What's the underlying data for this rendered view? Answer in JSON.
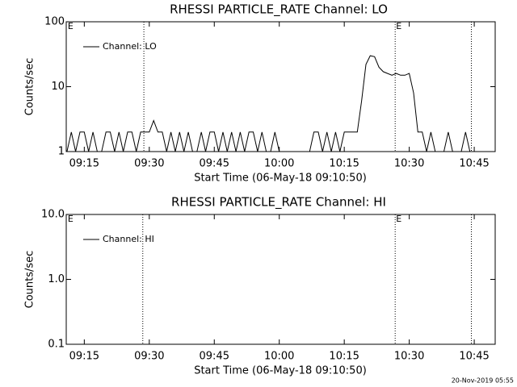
{
  "chart_data": [
    {
      "type": "line",
      "title": "RHESSI PARTICLE_RATE Channel: LO",
      "xlabel": "Start Time (06-May-18 09:10:50)",
      "ylabel": "Counts/sec",
      "log_y": true,
      "xlim": [
        "09:10:50",
        "10:49:50"
      ],
      "ylim": [
        1,
        100
      ],
      "yticks": [
        1,
        10,
        100
      ],
      "xticks": [
        "09:15",
        "09:30",
        "09:45",
        "10:00",
        "10:15",
        "10:30",
        "10:45"
      ],
      "event_lines": [
        "09:28:45",
        "10:26:45",
        "10:44:20"
      ],
      "event_labels": [
        {
          "time": "09:11:00",
          "label": "E"
        },
        {
          "time": "10:26:45",
          "label": "E"
        }
      ],
      "x": [
        "09:11",
        "09:12",
        "09:13",
        "09:14",
        "09:15",
        "09:16",
        "09:17",
        "09:18",
        "09:19",
        "09:20",
        "09:21",
        "09:22",
        "09:23",
        "09:24",
        "09:25",
        "09:26",
        "09:27",
        "09:28",
        "09:29",
        "09:30",
        "09:31",
        "09:32",
        "09:33",
        "09:34",
        "09:35",
        "09:36",
        "09:37",
        "09:38",
        "09:39",
        "09:40",
        "09:41",
        "09:42",
        "09:43",
        "09:44",
        "09:45",
        "09:46",
        "09:47",
        "09:48",
        "09:49",
        "09:50",
        "09:51",
        "09:52",
        "09:53",
        "09:54",
        "09:55",
        "09:56",
        "09:57",
        "09:58",
        "09:59",
        "10:00",
        "10:01",
        "10:02",
        "10:03",
        "10:04",
        "10:05",
        "10:06",
        "10:07",
        "10:08",
        "10:09",
        "10:10",
        "10:11",
        "10:12",
        "10:13",
        "10:14",
        "10:15",
        "10:16",
        "10:17",
        "10:18",
        "10:19",
        "10:20",
        "10:21",
        "10:22",
        "10:23",
        "10:24",
        "10:25",
        "10:26",
        "10:27",
        "10:28",
        "10:29",
        "10:30",
        "10:31",
        "10:32",
        "10:33",
        "10:34",
        "10:35",
        "10:36",
        "10:37",
        "10:38",
        "10:39",
        "10:40",
        "10:41",
        "10:42",
        "10:43",
        "10:44",
        "10:45",
        "10:46",
        "10:47",
        "10:48",
        "10:49"
      ],
      "series": [
        {
          "name": "Channel: LO",
          "color": "#000000",
          "values": [
            1,
            2,
            1,
            2,
            2,
            1,
            2,
            1,
            1,
            2,
            2,
            1,
            2,
            1,
            2,
            2,
            1,
            2,
            2,
            2,
            3,
            2,
            2,
            1,
            2,
            1,
            2,
            1,
            2,
            1,
            1,
            2,
            1,
            2,
            2,
            1,
            2,
            1,
            2,
            1,
            2,
            1,
            2,
            2,
            1,
            2,
            1,
            1,
            2,
            1,
            1,
            1,
            1,
            1,
            1,
            1,
            1,
            2,
            2,
            1,
            2,
            1,
            2,
            1,
            2,
            2,
            2,
            2,
            6,
            22,
            30,
            29,
            20,
            17,
            16,
            15,
            16,
            15,
            15,
            16,
            8,
            2,
            2,
            1,
            2,
            1,
            1,
            1,
            2,
            1,
            1,
            1,
            2,
            1,
            1,
            1,
            1,
            1,
            1
          ]
        }
      ]
    },
    {
      "type": "line",
      "title": "RHESSI PARTICLE_RATE Channel: HI",
      "xlabel": "Start Time (06-May-18 09:10:50)",
      "ylabel": "Counts/sec",
      "log_y": true,
      "xlim": [
        "09:10:50",
        "10:49:50"
      ],
      "ylim": [
        0.1,
        10
      ],
      "yticks": [
        0.1,
        {
          "value": 1,
          "label": "1.0"
        },
        {
          "value": 10,
          "label": "10.0"
        }
      ],
      "xticks": [
        "09:15",
        "09:30",
        "09:45",
        "10:00",
        "10:15",
        "10:30",
        "10:45"
      ],
      "event_lines": [
        "09:28:30",
        "10:26:45",
        "10:44:20"
      ],
      "event_labels": [
        {
          "time": "09:11:00",
          "label": "E"
        },
        {
          "time": "10:26:45",
          "label": "E"
        }
      ],
      "x": [],
      "series": [
        {
          "name": "Channel: HI",
          "color": "#000000",
          "values": []
        }
      ]
    }
  ],
  "footer": "20-Nov-2019 05:55"
}
